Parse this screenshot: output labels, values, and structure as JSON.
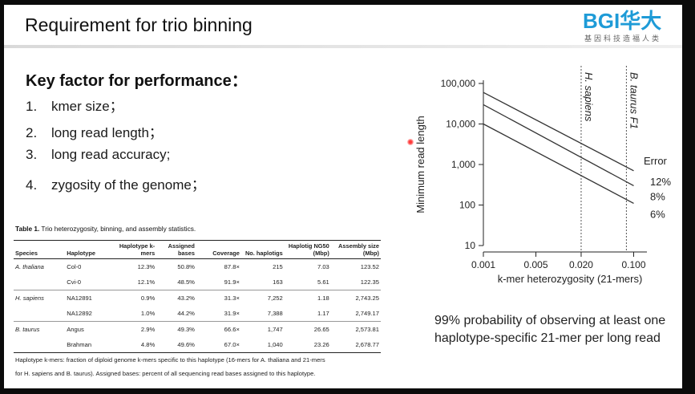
{
  "slide": {
    "title": "Requirement for trio binning",
    "logo": {
      "main": "BGI华大",
      "sub": "基因科技造福人类"
    },
    "key_factor_heading": "Key factor for performance：",
    "factors": [
      {
        "num": "1.",
        "text": "kmer size；"
      },
      {
        "num": "2.",
        "text": "long read length；"
      },
      {
        "num": "3.",
        "text": "long read accuracy;"
      },
      {
        "num": "4.",
        "text": "zygosity of the genome；"
      }
    ],
    "probability_note": "99% probability of observing at least one haplotype-specific 21-mer per long read"
  },
  "table": {
    "caption_label": "Table 1.",
    "caption_text": " Trio heterozygosity, binning, and assembly statistics.",
    "headers": [
      "Species",
      "Haplotype",
      "Haplotype k-mers",
      "Assigned bases",
      "Coverage",
      "No. haplotigs",
      "Haplotig NG50 (Mbp)",
      "Assembly size (Mbp)"
    ],
    "rows": [
      {
        "species": "A. thaliana",
        "haplotype": "Col-0",
        "kmers": "12.3%",
        "assigned": "50.8%",
        "coverage": "87.8×",
        "haplotigs": "215",
        "ng50": "7.03",
        "size": "123.52"
      },
      {
        "species": "",
        "haplotype": "Cvi-0",
        "kmers": "12.1%",
        "assigned": "48.5%",
        "coverage": "91.9×",
        "haplotigs": "163",
        "ng50": "5.61",
        "size": "122.35"
      },
      {
        "species": "H. sapiens",
        "haplotype": "NA12891",
        "kmers": "0.9%",
        "assigned": "43.2%",
        "coverage": "31.3×",
        "haplotigs": "7,252",
        "ng50": "1.18",
        "size": "2,743.25"
      },
      {
        "species": "",
        "haplotype": "NA12892",
        "kmers": "1.0%",
        "assigned": "44.2%",
        "coverage": "31.9×",
        "haplotigs": "7,388",
        "ng50": "1.17",
        "size": "2,749.17"
      },
      {
        "species": "B. taurus",
        "haplotype": "Angus",
        "kmers": "2.9%",
        "assigned": "49.3%",
        "coverage": "66.6×",
        "haplotigs": "1,747",
        "ng50": "26.65",
        "size": "2,573.81"
      },
      {
        "species": "",
        "haplotype": "Brahman",
        "kmers": "4.8%",
        "assigned": "49.6%",
        "coverage": "67.0×",
        "haplotigs": "1,040",
        "ng50": "23.26",
        "size": "2,678.77"
      }
    ],
    "footnote_1": "Haplotype k-mers: fraction of diploid genome k-mers specific to this haplotype (16-mers for A. thaliana and 21-mers",
    "footnote_2": "for H. sapiens and B. taurus). Assigned bases: percent of all sequencing read bases assigned to this haplotype."
  },
  "chart_data": {
    "type": "line",
    "xlabel": "k-mer heterozygosity (21-mers)",
    "ylabel": "Minimum read length",
    "x_scale": "log",
    "y_scale": "log",
    "xlim": [
      0.001,
      0.15
    ],
    "ylim": [
      10,
      100000
    ],
    "x_ticks": [
      0.001,
      0.005,
      0.02,
      0.1
    ],
    "x_tick_labels": [
      "0.001",
      "0.005",
      "0.020",
      "0.100"
    ],
    "y_ticks": [
      10,
      100,
      1000,
      10000,
      100000
    ],
    "y_tick_labels": [
      "10",
      "100",
      "1,000",
      "10,000",
      "100,000"
    ],
    "legend_title": "Error",
    "series": [
      {
        "name": "12%",
        "x": [
          0.001,
          0.1
        ],
        "y": [
          60000,
          700
        ]
      },
      {
        "name": "8%",
        "x": [
          0.001,
          0.1
        ],
        "y": [
          30000,
          300
        ]
      },
      {
        "name": "6%",
        "x": [
          0.001,
          0.1
        ],
        "y": [
          10000,
          110
        ]
      }
    ],
    "vlines": [
      {
        "label": "H. sapiens",
        "x": 0.02
      },
      {
        "label": "B. taurus F1",
        "x": 0.08
      }
    ],
    "grid": false
  }
}
